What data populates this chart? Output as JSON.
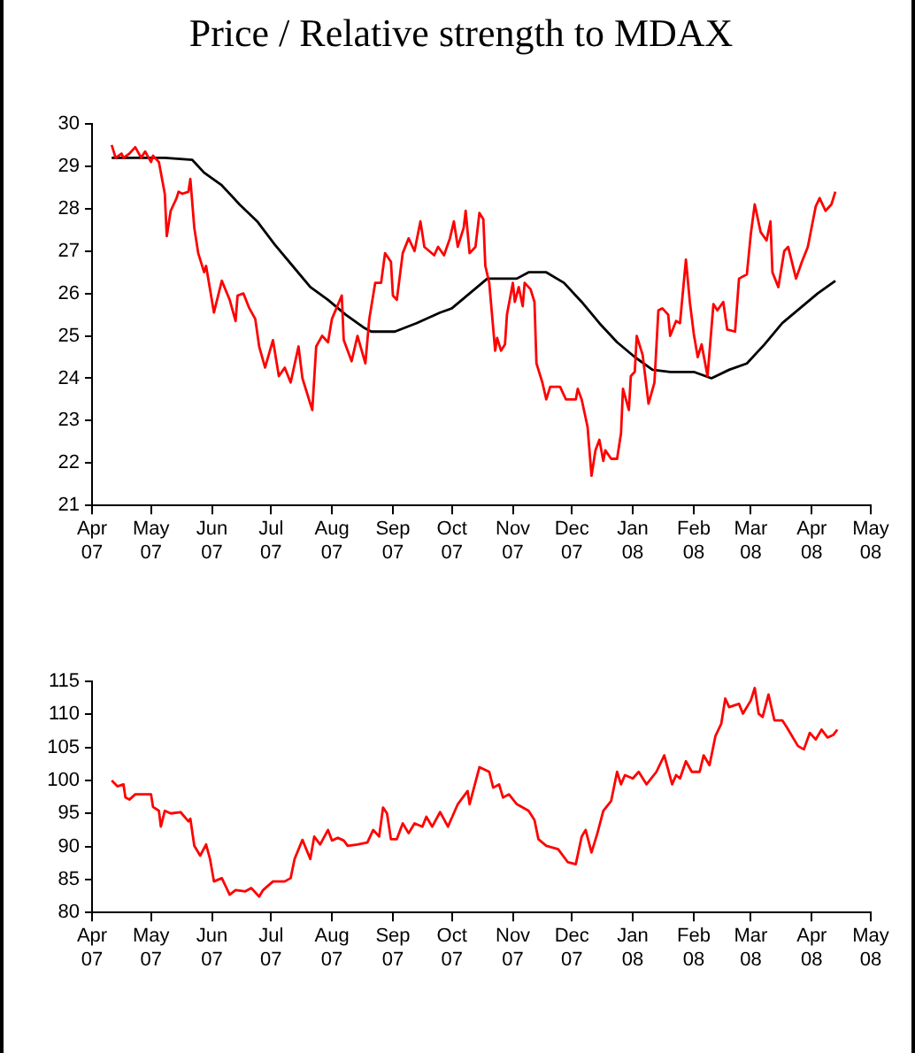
{
  "chart_data": [
    {
      "type": "line",
      "title": "Price / Relative strength to MDAX",
      "xlim": [
        "2007-04-01",
        "2008-05-01"
      ],
      "xticks": [
        {
          "value": "2007-04-01",
          "label": "Apr 07"
        },
        {
          "value": "2007-05-01",
          "label": "May 07"
        },
        {
          "value": "2007-06-01",
          "label": "Jun 07"
        },
        {
          "value": "2007-07-01",
          "label": "Jul 07"
        },
        {
          "value": "2007-08-01",
          "label": "Aug 07"
        },
        {
          "value": "2007-09-01",
          "label": "Sep 07"
        },
        {
          "value": "2007-10-01",
          "label": "Oct 07"
        },
        {
          "value": "2007-11-01",
          "label": "Nov 07"
        },
        {
          "value": "2007-12-01",
          "label": "Dec 07"
        },
        {
          "value": "2008-01-01",
          "label": "Jan 08"
        },
        {
          "value": "2008-02-01",
          "label": "Feb 08"
        },
        {
          "value": "2008-03-01",
          "label": "Mar 08"
        },
        {
          "value": "2008-04-01",
          "label": "Apr 08"
        },
        {
          "value": "2008-05-01",
          "label": "May 08"
        }
      ],
      "ylim": [
        21,
        30
      ],
      "yticks": [
        21,
        22,
        23,
        24,
        25,
        26,
        27,
        28,
        29,
        30
      ],
      "series": [
        {
          "color": "#ff0000",
          "x": [
            "2007-04-11",
            "2007-04-13",
            "2007-04-16",
            "2007-04-17",
            "2007-04-20",
            "2007-04-23",
            "2007-04-26",
            "2007-04-28",
            "2007-05-01",
            "2007-05-02",
            "2007-05-05",
            "2007-05-06",
            "2007-05-08",
            "2007-05-09",
            "2007-05-11",
            "2007-05-14",
            "2007-05-15",
            "2007-05-17",
            "2007-05-20",
            "2007-05-21",
            "2007-05-23",
            "2007-05-25",
            "2007-05-28",
            "2007-05-29",
            "2007-06-02",
            "2007-06-06",
            "2007-06-10",
            "2007-06-13",
            "2007-06-14",
            "2007-06-17",
            "2007-06-20",
            "2007-06-23",
            "2007-06-25",
            "2007-06-28",
            "2007-07-02",
            "2007-07-05",
            "2007-07-08",
            "2007-07-11",
            "2007-07-15",
            "2007-07-17",
            "2007-07-22",
            "2007-07-24",
            "2007-07-27",
            "2007-07-30",
            "2007-08-01",
            "2007-08-06",
            "2007-08-07",
            "2007-08-11",
            "2007-08-14",
            "2007-08-18",
            "2007-08-20",
            "2007-08-23",
            "2007-08-26",
            "2007-08-28",
            "2007-08-31",
            "2007-09-01",
            "2007-09-03",
            "2007-09-06",
            "2007-09-09",
            "2007-09-12",
            "2007-09-15",
            "2007-09-17",
            "2007-09-22",
            "2007-09-24",
            "2007-09-27",
            "2007-09-30",
            "2007-10-02",
            "2007-10-04",
            "2007-10-07",
            "2007-10-08",
            "2007-10-10",
            "2007-10-13",
            "2007-10-15",
            "2007-10-17",
            "2007-10-18",
            "2007-10-20",
            "2007-10-23",
            "2007-10-24",
            "2007-10-26",
            "2007-10-28",
            "2007-10-29",
            "2007-11-01",
            "2007-11-02",
            "2007-11-04",
            "2007-11-06",
            "2007-11-07",
            "2007-11-10",
            "2007-11-12",
            "2007-11-13",
            "2007-11-16",
            "2007-11-18",
            "2007-11-20",
            "2007-11-25",
            "2007-11-28",
            "2007-12-03",
            "2007-12-04",
            "2007-12-06",
            "2007-12-09",
            "2007-12-11",
            "2007-12-13",
            "2007-12-15",
            "2007-12-17",
            "2007-12-18",
            "2007-12-21",
            "2007-12-24",
            "2007-12-26",
            "2007-12-27",
            "2007-12-30",
            "2007-12-31",
            "2008-01-02",
            "2008-01-03",
            "2008-01-06",
            "2008-01-09",
            "2008-01-12",
            "2008-01-14",
            "2008-01-16",
            "2008-01-19",
            "2008-01-20",
            "2008-01-23",
            "2008-01-25",
            "2008-01-28",
            "2008-01-30",
            "2008-02-01",
            "2008-02-03",
            "2008-02-05",
            "2008-02-08",
            "2008-02-11",
            "2008-02-13",
            "2008-02-16",
            "2008-02-18",
            "2008-02-22",
            "2008-02-24",
            "2008-02-28",
            "2008-03-01",
            "2008-03-03",
            "2008-03-06",
            "2008-03-09",
            "2008-03-11",
            "2008-03-12",
            "2008-03-15",
            "2008-03-18",
            "2008-03-20",
            "2008-03-24",
            "2008-03-27",
            "2008-03-30",
            "2008-04-03",
            "2008-04-05",
            "2008-04-08",
            "2008-04-11",
            "2008-04-13"
          ],
          "values": [
            29.5,
            29.2,
            29.3,
            29.2,
            29.3,
            29.45,
            29.2,
            29.35,
            29.1,
            29.25,
            29.1,
            28.85,
            28.35,
            27.35,
            27.95,
            28.25,
            28.4,
            28.35,
            28.4,
            28.7,
            27.55,
            26.95,
            26.5,
            26.65,
            25.55,
            26.3,
            25.85,
            25.35,
            25.95,
            26.0,
            25.65,
            25.4,
            24.75,
            24.25,
            24.9,
            24.05,
            24.25,
            23.9,
            24.75,
            24.0,
            23.25,
            24.75,
            25.0,
            24.85,
            25.4,
            25.95,
            24.9,
            24.4,
            25.0,
            24.35,
            25.4,
            26.25,
            26.25,
            26.95,
            26.75,
            25.95,
            25.85,
            26.95,
            27.3,
            27.0,
            27.7,
            27.1,
            26.9,
            27.1,
            26.9,
            27.3,
            27.7,
            27.1,
            27.55,
            27.95,
            26.95,
            27.1,
            27.9,
            27.75,
            26.65,
            26.25,
            24.65,
            24.95,
            24.65,
            24.8,
            25.5,
            26.25,
            25.8,
            26.15,
            25.7,
            26.25,
            26.1,
            25.8,
            24.35,
            23.9,
            23.5,
            23.8,
            23.8,
            23.5,
            23.5,
            23.75,
            23.5,
            22.85,
            21.7,
            22.3,
            22.55,
            22.05,
            22.3,
            22.1,
            22.1,
            22.7,
            23.75,
            23.25,
            24.05,
            24.15,
            25.0,
            24.55,
            23.4,
            23.9,
            25.6,
            25.65,
            25.5,
            25.0,
            25.35,
            25.3,
            26.8,
            25.8,
            25.05,
            24.5,
            24.8,
            24.05,
            25.75,
            25.6,
            25.8,
            25.15,
            25.1,
            26.35,
            26.45,
            27.4,
            28.1,
            27.45,
            27.25,
            27.7,
            26.5,
            26.15,
            27.0,
            27.1,
            26.35,
            26.75,
            27.1,
            28.05,
            28.25,
            27.95,
            28.1,
            28.4
          ]
        },
        {
          "color": "#000000",
          "x": [
            "2007-04-11",
            "2007-05-08",
            "2007-05-22",
            "2007-05-28",
            "2007-06-06",
            "2007-06-15",
            "2007-06-24",
            "2007-07-03",
            "2007-07-12",
            "2007-07-21",
            "2007-07-30",
            "2007-08-08",
            "2007-08-17",
            "2007-08-21",
            "2007-09-02",
            "2007-09-13",
            "2007-09-25",
            "2007-10-01",
            "2007-10-10",
            "2007-10-19",
            "2007-11-03",
            "2007-11-09",
            "2007-11-18",
            "2007-11-27",
            "2007-12-06",
            "2007-12-15",
            "2007-12-24",
            "2008-01-02",
            "2008-01-11",
            "2008-01-20",
            "2008-02-01",
            "2008-02-10",
            "2008-02-19",
            "2008-02-28",
            "2008-03-08",
            "2008-03-17",
            "2008-03-26",
            "2008-04-04",
            "2008-04-13"
          ],
          "values": [
            29.2,
            29.2,
            29.15,
            28.85,
            28.55,
            28.1,
            27.7,
            27.15,
            26.65,
            26.15,
            25.85,
            25.5,
            25.2,
            25.1,
            25.1,
            25.3,
            25.55,
            25.65,
            26.0,
            26.35,
            26.35,
            26.5,
            26.5,
            26.25,
            25.8,
            25.3,
            24.85,
            24.5,
            24.2,
            24.15,
            24.15,
            24.0,
            24.2,
            24.35,
            24.8,
            25.3,
            25.65,
            26.0,
            26.3
          ]
        }
      ]
    },
    {
      "type": "line",
      "xlim": [
        "2007-04-01",
        "2008-05-01"
      ],
      "xticks": [
        {
          "value": "2007-04-01",
          "label": "Apr 07"
        },
        {
          "value": "2007-05-01",
          "label": "May 07"
        },
        {
          "value": "2007-06-01",
          "label": "Jun 07"
        },
        {
          "value": "2007-07-01",
          "label": "Jul 07"
        },
        {
          "value": "2007-08-01",
          "label": "Aug 07"
        },
        {
          "value": "2007-09-01",
          "label": "Sep 07"
        },
        {
          "value": "2007-10-01",
          "label": "Oct 07"
        },
        {
          "value": "2007-11-01",
          "label": "Nov 07"
        },
        {
          "value": "2007-12-01",
          "label": "Dec 07"
        },
        {
          "value": "2008-01-01",
          "label": "Jan 08"
        },
        {
          "value": "2008-02-01",
          "label": "Feb 08"
        },
        {
          "value": "2008-03-01",
          "label": "Mar 08"
        },
        {
          "value": "2008-04-01",
          "label": "Apr 08"
        },
        {
          "value": "2008-05-01",
          "label": "May 08"
        }
      ],
      "ylim": [
        80,
        115
      ],
      "yticks": [
        80,
        85,
        90,
        95,
        100,
        105,
        110,
        115
      ],
      "series": [
        {
          "color": "#ff0000",
          "x": [
            "2007-04-11",
            "2007-04-14",
            "2007-04-17",
            "2007-04-18",
            "2007-04-20",
            "2007-04-23",
            "2007-05-01",
            "2007-05-02",
            "2007-05-05",
            "2007-05-06",
            "2007-05-08",
            "2007-05-11",
            "2007-05-16",
            "2007-05-20",
            "2007-05-21",
            "2007-05-23",
            "2007-05-26",
            "2007-05-29",
            "2007-05-31",
            "2007-06-02",
            "2007-06-06",
            "2007-06-10",
            "2007-06-13",
            "2007-06-18",
            "2007-06-21",
            "2007-06-25",
            "2007-06-27",
            "2007-07-02",
            "2007-07-08",
            "2007-07-11",
            "2007-07-13",
            "2007-07-17",
            "2007-07-21",
            "2007-07-23",
            "2007-07-26",
            "2007-07-30",
            "2007-08-01",
            "2007-08-04",
            "2007-08-07",
            "2007-08-09",
            "2007-08-14",
            "2007-08-19",
            "2007-08-22",
            "2007-08-25",
            "2007-08-27",
            "2007-08-29",
            "2007-08-31",
            "2007-09-03",
            "2007-09-06",
            "2007-09-09",
            "2007-09-12",
            "2007-09-16",
            "2007-09-18",
            "2007-09-21",
            "2007-09-25",
            "2007-09-29",
            "2007-10-04",
            "2007-10-09",
            "2007-10-10",
            "2007-10-15",
            "2007-10-20",
            "2007-10-22",
            "2007-10-25",
            "2007-10-27",
            "2007-10-30",
            "2007-11-03",
            "2007-11-09",
            "2007-11-12",
            "2007-11-14",
            "2007-11-18",
            "2007-11-24",
            "2007-11-29",
            "2007-12-03",
            "2007-12-06",
            "2007-12-08",
            "2007-12-11",
            "2007-12-14",
            "2007-12-17",
            "2007-12-21",
            "2007-12-24",
            "2007-12-26",
            "2007-12-28",
            "2008-01-01",
            "2008-01-04",
            "2008-01-08",
            "2008-01-13",
            "2008-01-17",
            "2008-01-21",
            "2008-01-23",
            "2008-01-25",
            "2008-01-28",
            "2008-01-31",
            "2008-02-04",
            "2008-02-06",
            "2008-02-09",
            "2008-02-12",
            "2008-02-15",
            "2008-02-17",
            "2008-02-19",
            "2008-02-24",
            "2008-02-26",
            "2008-03-01",
            "2008-03-03",
            "2008-03-05",
            "2008-03-07",
            "2008-03-10",
            "2008-03-13",
            "2008-03-17",
            "2008-03-19",
            "2008-03-25",
            "2008-03-28",
            "2008-03-31",
            "2008-04-03",
            "2008-04-06",
            "2008-04-09",
            "2008-04-12",
            "2008-04-14"
          ],
          "values": [
            100,
            99.1,
            99.4,
            97.4,
            97.1,
            97.9,
            97.9,
            96.0,
            95.4,
            93.0,
            95.4,
            95.0,
            95.2,
            93.8,
            94.2,
            90.1,
            88.6,
            90.3,
            88.1,
            84.7,
            85.2,
            82.7,
            83.4,
            83.2,
            83.7,
            82.4,
            83.4,
            84.7,
            84.7,
            85.2,
            88.1,
            91.0,
            88.1,
            91.5,
            90.3,
            92.5,
            90.9,
            91.3,
            90.9,
            90.1,
            90.3,
            90.6,
            92.5,
            91.5,
            95.9,
            95.0,
            91.1,
            91.1,
            93.5,
            92.0,
            93.5,
            93.0,
            94.5,
            93.0,
            95.2,
            93.0,
            96.4,
            98.4,
            96.4,
            102,
            101.3,
            98.9,
            99.4,
            97.4,
            97.9,
            96.4,
            95.4,
            94.0,
            91.1,
            90.1,
            89.6,
            87.6,
            87.3,
            91.5,
            92.5,
            89.1,
            92.0,
            95.4,
            96.9,
            101.3,
            99.4,
            100.8,
            100.3,
            101.3,
            99.4,
            101.3,
            103.8,
            99.4,
            100.8,
            100.3,
            102.9,
            101.3,
            101.3,
            103.8,
            102.3,
            106.7,
            108.6,
            112.4,
            111.1,
            111.6,
            110.1,
            112.1,
            114,
            110.1,
            109.6,
            113,
            109.1,
            109.1,
            108.2,
            105.2,
            104.7,
            107.2,
            106.2,
            107.7,
            106.5,
            106.9,
            107.7
          ]
        }
      ]
    }
  ]
}
